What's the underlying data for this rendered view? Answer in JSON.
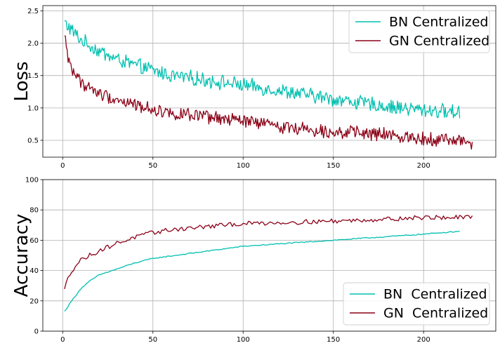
{
  "chart_data": [
    {
      "type": "line",
      "ylabel": "Loss",
      "xlim": [
        -11,
        240
      ],
      "ylim": [
        0.24,
        2.58
      ],
      "xticks": [
        0,
        50,
        100,
        150,
        200
      ],
      "yticks": [
        0.5,
        1.0,
        1.5,
        2.0,
        2.5
      ],
      "ytick_labels": [
        "0.5",
        "1.0",
        "1.5",
        "2.0",
        "2.5"
      ],
      "grid": true,
      "legend_position": "top-right",
      "noisy": true,
      "series": [
        {
          "name": "BN Centralized",
          "color": "#00c0b0",
          "x_range": [
            1,
            220
          ],
          "points": [
            [
              1,
              2.32
            ],
            [
              5,
              2.2
            ],
            [
              10,
              2.05
            ],
            [
              20,
              1.88
            ],
            [
              30,
              1.75
            ],
            [
              40,
              1.66
            ],
            [
              50,
              1.58
            ],
            [
              60,
              1.5
            ],
            [
              80,
              1.43
            ],
            [
              100,
              1.35
            ],
            [
              120,
              1.27
            ],
            [
              140,
              1.18
            ],
            [
              160,
              1.1
            ],
            [
              180,
              1.02
            ],
            [
              200,
              0.97
            ],
            [
              220,
              0.93
            ]
          ],
          "noise": 0.1
        },
        {
          "name": "GN Centralized",
          "color": "#8b0016",
          "x_range": [
            1,
            227
          ],
          "points": [
            [
              1,
              2.1
            ],
            [
              3,
              1.8
            ],
            [
              5,
              1.6
            ],
            [
              10,
              1.4
            ],
            [
              20,
              1.22
            ],
            [
              30,
              1.13
            ],
            [
              40,
              1.05
            ],
            [
              50,
              0.98
            ],
            [
              60,
              0.92
            ],
            [
              80,
              0.85
            ],
            [
              100,
              0.8
            ],
            [
              120,
              0.72
            ],
            [
              140,
              0.66
            ],
            [
              160,
              0.62
            ],
            [
              180,
              0.58
            ],
            [
              200,
              0.53
            ],
            [
              220,
              0.5
            ],
            [
              227,
              0.46
            ]
          ],
          "noise": 0.09
        }
      ]
    },
    {
      "type": "line",
      "ylabel": "Accuracy",
      "xlim": [
        -11,
        240
      ],
      "ylim": [
        0,
        100
      ],
      "xticks": [
        0,
        50,
        100,
        150,
        200
      ],
      "yticks": [
        0,
        20,
        40,
        60,
        80,
        100
      ],
      "ytick_labels": [
        "0",
        "20",
        "40",
        "60",
        "80",
        "100"
      ],
      "grid": true,
      "legend_position": "bottom-right",
      "noisy": false,
      "series": [
        {
          "name": "BN  Centralized",
          "color": "#00c0b0",
          "x_range": [
            1,
            220
          ],
          "points": [
            [
              1,
              13
            ],
            [
              5,
              20
            ],
            [
              10,
              28
            ],
            [
              15,
              33
            ],
            [
              20,
              37
            ],
            [
              30,
              41
            ],
            [
              40,
              45
            ],
            [
              50,
              48
            ],
            [
              75,
              52
            ],
            [
              100,
              56
            ],
            [
              125,
              58
            ],
            [
              150,
              60
            ],
            [
              175,
              62
            ],
            [
              200,
              64
            ],
            [
              220,
              66
            ]
          ],
          "noise": 0.35
        },
        {
          "name": "GN  Centralized",
          "color": "#8b0016",
          "x_range": [
            1,
            227
          ],
          "points": [
            [
              1,
              27
            ],
            [
              3,
              36
            ],
            [
              5,
              40
            ],
            [
              10,
              47
            ],
            [
              20,
              53
            ],
            [
              30,
              58
            ],
            [
              40,
              62
            ],
            [
              50,
              65
            ],
            [
              60,
              67
            ],
            [
              80,
              69
            ],
            [
              100,
              71
            ],
            [
              130,
              72
            ],
            [
              160,
              73
            ],
            [
              200,
              75
            ],
            [
              227,
              75
            ]
          ],
          "noise": 1.5
        }
      ]
    }
  ]
}
